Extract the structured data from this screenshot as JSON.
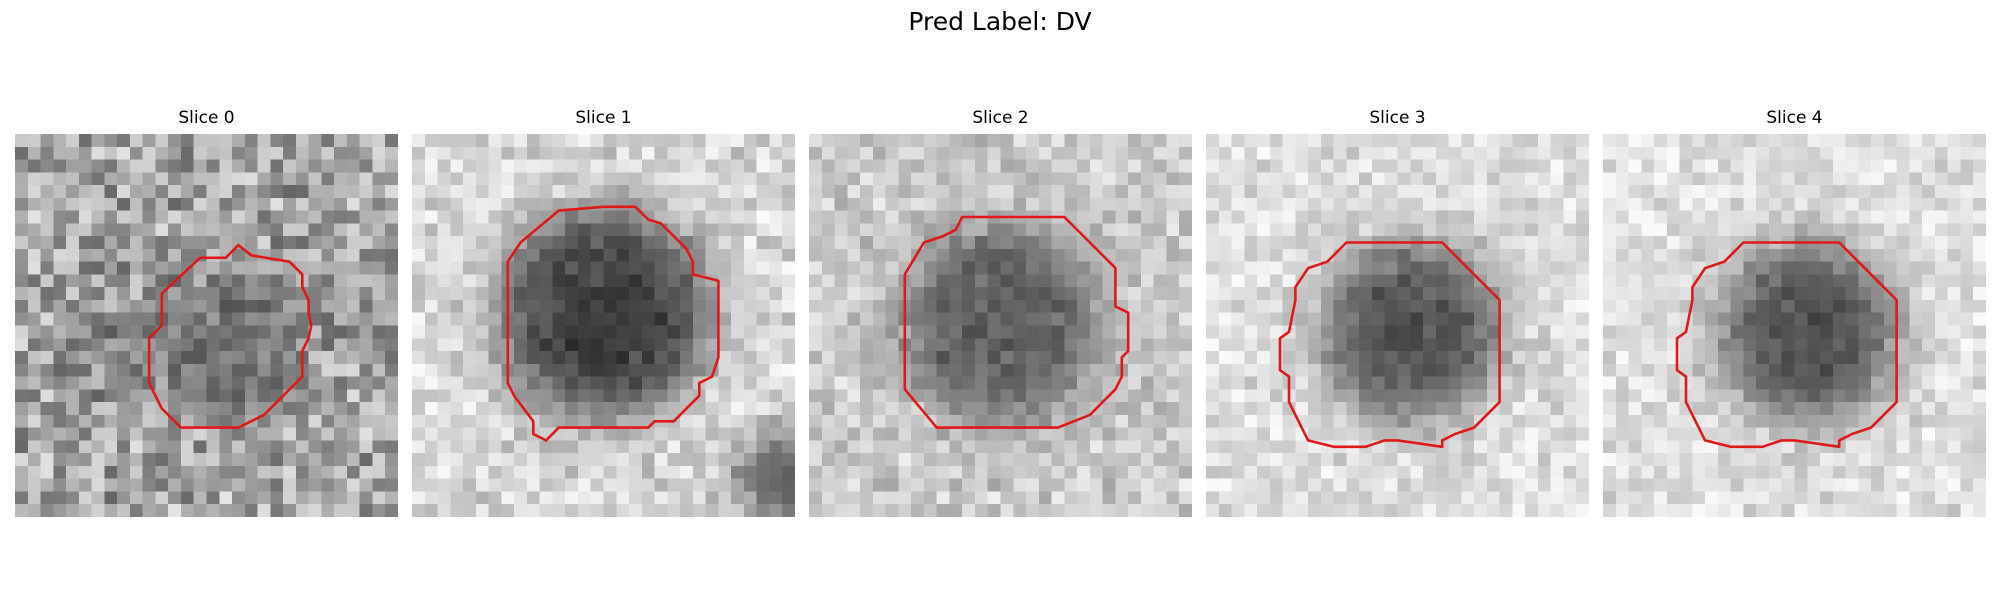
{
  "figure": {
    "title": "Pred Label: DV"
  },
  "panels": [
    {
      "title": "Slice 0"
    },
    {
      "title": "Slice 1"
    },
    {
      "title": "Slice 2"
    },
    {
      "title": "Slice 3"
    },
    {
      "title": "Slice 4"
    }
  ],
  "colors": {
    "contour": "#e01818",
    "background": "#ffffff"
  }
}
